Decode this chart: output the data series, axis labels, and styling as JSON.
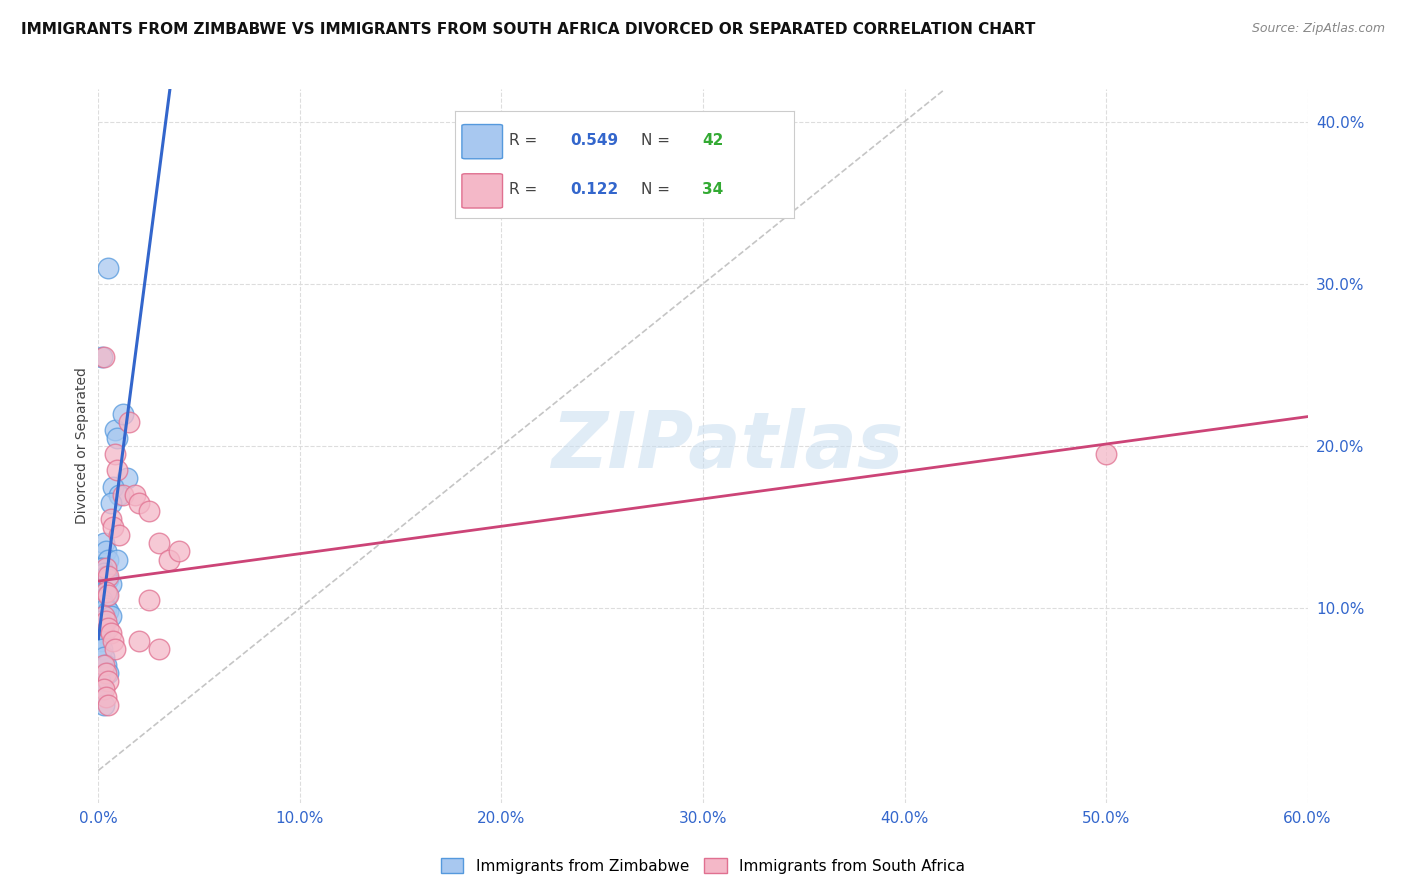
{
  "title": "IMMIGRANTS FROM ZIMBABWE VS IMMIGRANTS FROM SOUTH AFRICA DIVORCED OR SEPARATED CORRELATION CHART",
  "source": "Source: ZipAtlas.com",
  "ylabel": "Divorced or Separated",
  "xlim": [
    0.0,
    60.0
  ],
  "ylim": [
    -2.0,
    42.0
  ],
  "R_blue": 0.549,
  "N_blue": 42,
  "R_pink": 0.122,
  "N_pink": 34,
  "blue_face": "#a8c8f0",
  "blue_edge": "#5599dd",
  "pink_face": "#f4b8c8",
  "pink_edge": "#e07090",
  "blue_line": "#3366cc",
  "pink_line": "#cc4477",
  "ref_line": "#bbbbbb",
  "legend_label_blue": "Immigrants from Zimbabwe",
  "legend_label_pink": "Immigrants from South Africa",
  "background": "#ffffff",
  "grid_color": "#dddddd",
  "blue_scatter": [
    [
      0.2,
      25.5
    ],
    [
      0.5,
      31.0
    ],
    [
      0.8,
      21.0
    ],
    [
      0.9,
      20.5
    ],
    [
      1.2,
      22.0
    ],
    [
      1.4,
      18.0
    ],
    [
      0.7,
      17.5
    ],
    [
      1.0,
      17.0
    ],
    [
      0.6,
      16.5
    ],
    [
      0.3,
      14.0
    ],
    [
      0.4,
      13.5
    ],
    [
      0.5,
      13.0
    ],
    [
      0.9,
      13.0
    ],
    [
      0.1,
      12.5
    ],
    [
      0.2,
      12.5
    ],
    [
      0.3,
      12.2
    ],
    [
      0.4,
      12.0
    ],
    [
      0.5,
      11.8
    ],
    [
      0.6,
      11.5
    ],
    [
      0.15,
      11.2
    ],
    [
      0.25,
      11.0
    ],
    [
      0.35,
      11.0
    ],
    [
      0.45,
      10.8
    ],
    [
      0.1,
      10.5
    ],
    [
      0.2,
      10.5
    ],
    [
      0.3,
      10.2
    ],
    [
      0.4,
      10.0
    ],
    [
      0.5,
      9.8
    ],
    [
      0.6,
      9.5
    ],
    [
      0.15,
      9.2
    ],
    [
      0.25,
      9.0
    ],
    [
      0.2,
      8.8
    ],
    [
      0.3,
      8.5
    ],
    [
      0.1,
      8.2
    ],
    [
      0.15,
      8.0
    ],
    [
      0.2,
      7.5
    ],
    [
      0.3,
      7.0
    ],
    [
      0.4,
      6.5
    ],
    [
      0.5,
      6.0
    ],
    [
      0.1,
      5.5
    ],
    [
      0.2,
      5.0
    ],
    [
      0.3,
      4.0
    ]
  ],
  "pink_scatter": [
    [
      0.3,
      25.5
    ],
    [
      1.5,
      21.5
    ],
    [
      0.8,
      19.5
    ],
    [
      0.9,
      18.5
    ],
    [
      1.2,
      17.0
    ],
    [
      1.8,
      17.0
    ],
    [
      2.0,
      16.5
    ],
    [
      2.5,
      16.0
    ],
    [
      0.6,
      15.5
    ],
    [
      0.7,
      15.0
    ],
    [
      1.0,
      14.5
    ],
    [
      3.0,
      14.0
    ],
    [
      3.5,
      13.0
    ],
    [
      0.4,
      12.5
    ],
    [
      0.5,
      12.0
    ],
    [
      4.0,
      13.5
    ],
    [
      0.4,
      11.0
    ],
    [
      0.5,
      10.8
    ],
    [
      2.5,
      10.5
    ],
    [
      0.3,
      9.5
    ],
    [
      0.4,
      9.2
    ],
    [
      0.5,
      8.8
    ],
    [
      0.6,
      8.5
    ],
    [
      0.7,
      8.0
    ],
    [
      0.8,
      7.5
    ],
    [
      2.0,
      8.0
    ],
    [
      3.0,
      7.5
    ],
    [
      0.3,
      6.5
    ],
    [
      0.4,
      6.0
    ],
    [
      0.5,
      5.5
    ],
    [
      0.3,
      5.0
    ],
    [
      0.4,
      4.5
    ],
    [
      0.5,
      4.0
    ],
    [
      50.0,
      19.5
    ]
  ],
  "title_fontsize": 11,
  "tick_fontsize": 10,
  "source_fontsize": 9
}
